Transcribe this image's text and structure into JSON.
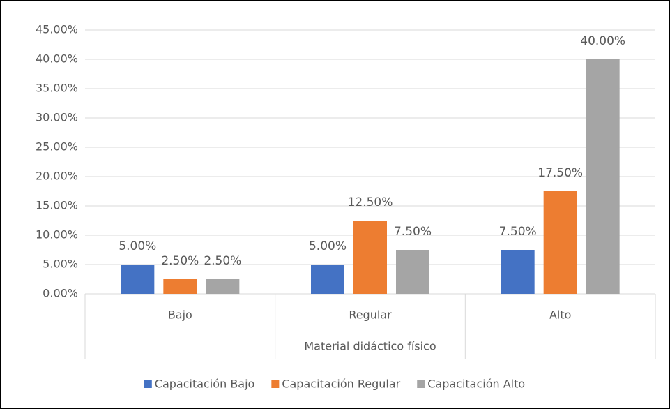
{
  "chart_data": {
    "type": "bar",
    "categories": [
      "Bajo",
      "Regular",
      "Alto"
    ],
    "x_label": "Material didáctico físico",
    "series": [
      {
        "name": "Capacitación Bajo",
        "color": "#4472c4",
        "values": [
          5,
          5,
          7.5
        ],
        "value_labels": [
          "5.00%",
          "5.00%",
          "7.50%"
        ]
      },
      {
        "name": "Capacitación Regular",
        "color": "#ed7d31",
        "values": [
          2.5,
          12.5,
          17.5
        ],
        "value_labels": [
          "2.50%",
          "12.50%",
          "17.50%"
        ]
      },
      {
        "name": "Capacitación Alto",
        "color": "#a5a5a5",
        "values": [
          2.5,
          7.5,
          40
        ],
        "value_labels": [
          "2.50%",
          "7.50%",
          "40.00%"
        ]
      }
    ],
    "ylim": [
      0,
      45
    ],
    "yticks": [
      {
        "value": 0,
        "label": "0.00%"
      },
      {
        "value": 5,
        "label": "5.00%"
      },
      {
        "value": 10,
        "label": "10.00%"
      },
      {
        "value": 15,
        "label": "15.00%"
      },
      {
        "value": 20,
        "label": "20.00%"
      },
      {
        "value": 25,
        "label": "25.00%"
      },
      {
        "value": 30,
        "label": "30.00%"
      },
      {
        "value": 35,
        "label": "35.00%"
      },
      {
        "value": 40,
        "label": "40.00%"
      },
      {
        "value": 45,
        "label": "45.00%"
      }
    ],
    "grid": true,
    "legend": "bottom"
  }
}
